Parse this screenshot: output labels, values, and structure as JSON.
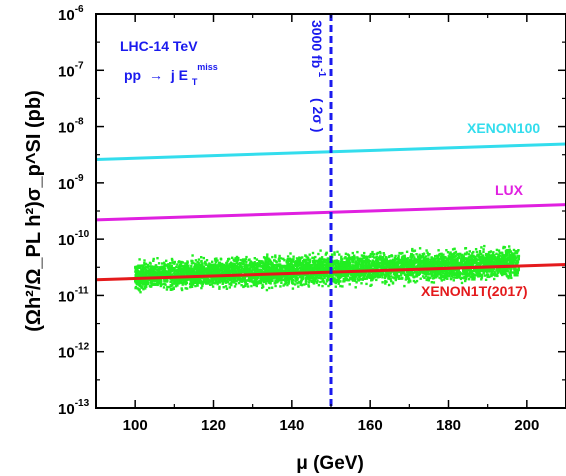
{
  "chart_data": {
    "type": "scatter",
    "title": "",
    "xlabel": "μ (GeV)",
    "ylabel": "(Ωh²/Ω_PL h²)σ_p^SI (pb)",
    "xlim": [
      90,
      210
    ],
    "ylim": [
      1e-13,
      1e-06
    ],
    "yscale": "log",
    "grid": false,
    "x_ticks": [
      100,
      120,
      140,
      160,
      180,
      200
    ],
    "y_ticks": [
      {
        "base": "10",
        "exp": "-13"
      },
      {
        "base": "10",
        "exp": "-12"
      },
      {
        "base": "10",
        "exp": "-11"
      },
      {
        "base": "10",
        "exp": "-10"
      },
      {
        "base": "10",
        "exp": "-9"
      },
      {
        "base": "10",
        "exp": "-8"
      },
      {
        "base": "10",
        "exp": "-7"
      },
      {
        "base": "10",
        "exp": "-6"
      }
    ],
    "limit_lines": [
      {
        "name": "XENON100",
        "color": "#33dded",
        "x": [
          90,
          210
        ],
        "y": [
          2.6e-09,
          4.9e-09
        ]
      },
      {
        "name": "LUX",
        "color": "#e020e0",
        "x": [
          90,
          210
        ],
        "y": [
          2.2e-10,
          4.1e-10
        ]
      },
      {
        "name": "XENON1T(2017)",
        "color": "#e41a1c",
        "x": [
          90,
          210
        ],
        "y": [
          1.9e-11,
          3.55e-11
        ]
      }
    ],
    "vertical_line": {
      "x": 150,
      "color": "#1a1aee",
      "label_main": "3000 fb",
      "label_sup": "-1",
      "label_sig": "( 2σ )"
    },
    "scatter_band": {
      "name": "points",
      "color": "#22ee22",
      "x_range": [
        100,
        198
      ],
      "y_low_at_start": 1e-11,
      "y_high_at_start": 4.8e-11,
      "y_low_at_end": 1.6e-11,
      "y_high_at_end": 8.8e-11,
      "n_points": 5500
    },
    "annotation_main": "LHC-14 TeV",
    "annotation_process": {
      "lhs": "pp",
      "arrow": "→",
      "rhs": "j E",
      "sub": "T",
      "sup": "miss"
    }
  }
}
